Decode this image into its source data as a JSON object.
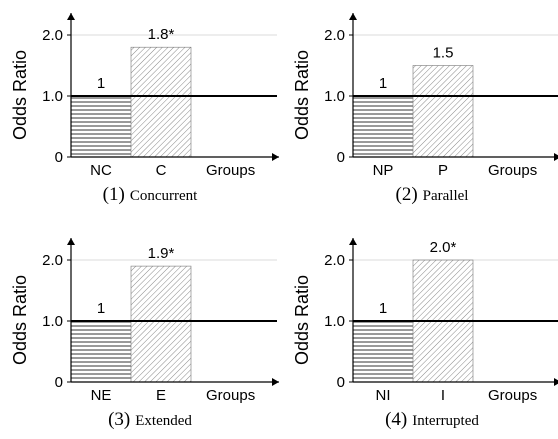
{
  "chart_data": [
    {
      "type": "bar",
      "caption": "Concurrent",
      "caption_number": "(1)",
      "ylabel": "Odds Ratio",
      "xlabel": "Groups",
      "ylim": [
        0,
        2.4
      ],
      "yticks": [
        "0",
        "1.0",
        "2.0"
      ],
      "reference_line": 1.0,
      "categories": [
        "NC",
        "C"
      ],
      "values": [
        1.0,
        1.8
      ],
      "value_labels": [
        "1",
        "1.8*"
      ],
      "patterns": [
        "horizontal-lines",
        "diagonal-lines"
      ]
    },
    {
      "type": "bar",
      "caption": "Parallel",
      "caption_number": "(2)",
      "ylabel": "Odds Ratio",
      "xlabel": "Groups",
      "ylim": [
        0,
        2.4
      ],
      "yticks": [
        "0",
        "1.0",
        "2.0"
      ],
      "reference_line": 1.0,
      "categories": [
        "NP",
        "P"
      ],
      "values": [
        1.0,
        1.5
      ],
      "value_labels": [
        "1",
        "1.5"
      ],
      "patterns": [
        "horizontal-lines",
        "diagonal-lines"
      ]
    },
    {
      "type": "bar",
      "caption": "Extended",
      "caption_number": "(3)",
      "ylabel": "Odds Ratio",
      "xlabel": "Groups",
      "ylim": [
        0,
        2.4
      ],
      "yticks": [
        "0",
        "1.0",
        "2.0"
      ],
      "reference_line": 1.0,
      "categories": [
        "NE",
        "E"
      ],
      "values": [
        1.0,
        1.9
      ],
      "value_labels": [
        "1",
        "1.9*"
      ],
      "patterns": [
        "horizontal-lines",
        "diagonal-lines"
      ]
    },
    {
      "type": "bar",
      "caption": "Interrupted",
      "caption_number": "(4)",
      "ylabel": "Odds Ratio",
      "xlabel": "Groups",
      "ylim": [
        0,
        2.4
      ],
      "yticks": [
        "0",
        "1.0",
        "2.0"
      ],
      "reference_line": 1.0,
      "categories": [
        "NI",
        "I"
      ],
      "values": [
        1.0,
        2.0
      ],
      "value_labels": [
        "1",
        "2.0*"
      ],
      "patterns": [
        "horizontal-lines",
        "diagonal-lines"
      ]
    }
  ]
}
